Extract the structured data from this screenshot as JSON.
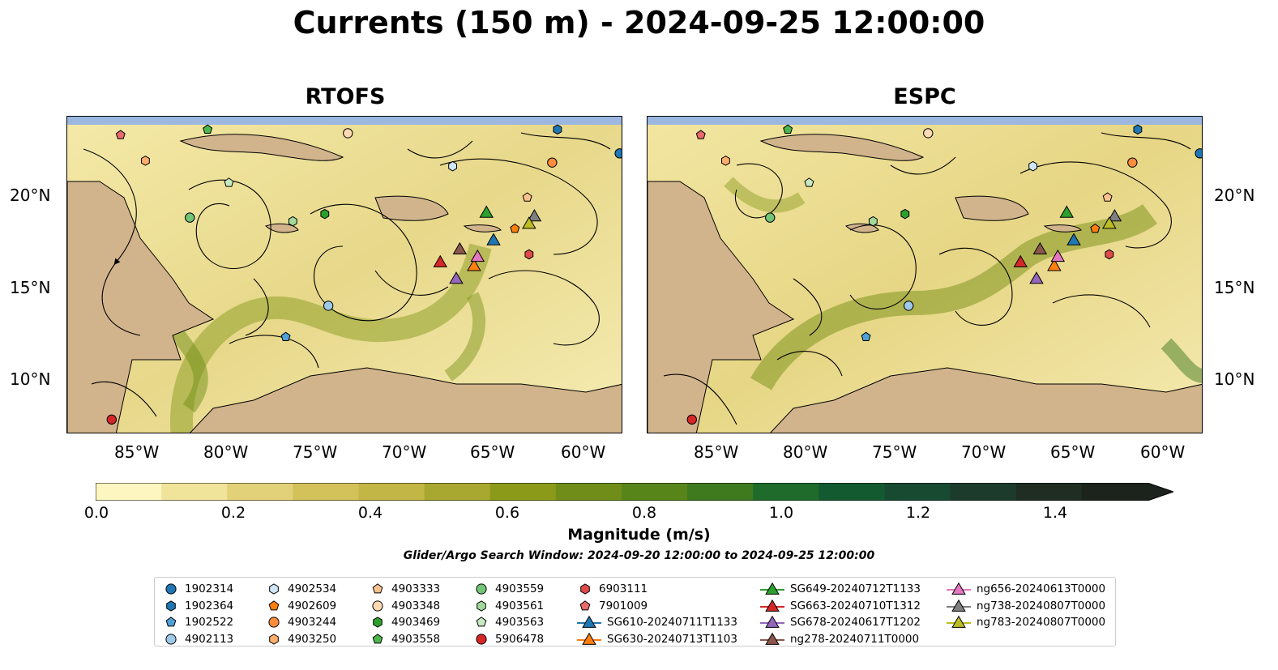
{
  "title": "Currents (150 m) - 2024-09-25 12:00:00",
  "panels": [
    {
      "title": "RTOFS"
    },
    {
      "title": "ESPC"
    }
  ],
  "lat_ticks": [
    "20°N",
    "15°N",
    "10°N"
  ],
  "lon_ticks": [
    "85°W",
    "80°W",
    "75°W",
    "70°W",
    "65°W",
    "60°W"
  ],
  "colorbar": {
    "label": "Magnitude (m/s)",
    "ticks": [
      "0.0",
      "0.2",
      "0.4",
      "0.6",
      "0.8",
      "1.0",
      "1.2",
      "1.4"
    ],
    "colors": [
      "#fdf6c0",
      "#f0e39a",
      "#e2d178",
      "#d3c15a",
      "#c2b646",
      "#a8a730",
      "#8c9a1a",
      "#6f8d18",
      "#578519",
      "#3f7a1f",
      "#1f6b2c",
      "#135a31",
      "#174a31",
      "#1c3b2c",
      "#1f2d23",
      "#1b231c"
    ]
  },
  "search_window": "Glider/Argo Search Window: 2024-09-20 12:00:00 to 2024-09-25 12:00:00",
  "map_colors": {
    "land": "#d2b48c",
    "water": "#9cb8e0",
    "current_low": "#fdf6c0"
  },
  "legend": [
    {
      "label": "1902314",
      "marker": "circle",
      "color": "#1f77b4"
    },
    {
      "label": "1902364",
      "marker": "hexagon",
      "color": "#1f77b4"
    },
    {
      "label": "1902522",
      "marker": "pentagon",
      "color": "#4ea0d7"
    },
    {
      "label": "4902113",
      "marker": "circle",
      "color": "#9ecae9"
    },
    {
      "label": "4902534",
      "marker": "hexagon",
      "color": "#cfe6f8"
    },
    {
      "label": "4902609",
      "marker": "pentagon",
      "color": "#ff7f0e"
    },
    {
      "label": "4903244",
      "marker": "circle",
      "color": "#fd8d3c"
    },
    {
      "label": "4903250",
      "marker": "hexagon",
      "color": "#fdae6b"
    },
    {
      "label": "4903333",
      "marker": "pentagon",
      "color": "#fdc38f"
    },
    {
      "label": "4903348",
      "marker": "circle",
      "color": "#fdd9b4"
    },
    {
      "label": "4903469",
      "marker": "hexagon",
      "color": "#2ca02c"
    },
    {
      "label": "4903558",
      "marker": "pentagon",
      "color": "#4cb84c"
    },
    {
      "label": "4903559",
      "marker": "circle",
      "color": "#74c476"
    },
    {
      "label": "4903561",
      "marker": "hexagon",
      "color": "#a1d99b"
    },
    {
      "label": "4903563",
      "marker": "pentagon",
      "color": "#c7e9c0"
    },
    {
      "label": "5906478",
      "marker": "circle",
      "color": "#d62728"
    },
    {
      "label": "6903111",
      "marker": "hexagon",
      "color": "#e04a4a"
    },
    {
      "label": "7901009",
      "marker": "pentagon",
      "color": "#e86b6b"
    },
    {
      "label": "SG610-20240711T1133",
      "marker": "triangle",
      "color": "#1f77b4"
    },
    {
      "label": "SG630-20240713T1103",
      "marker": "triangle",
      "color": "#ff7f0e"
    },
    {
      "label": "SG649-20240712T1133",
      "marker": "triangle",
      "color": "#2ca02c"
    },
    {
      "label": "SG663-20240710T1312",
      "marker": "triangle",
      "color": "#d62728"
    },
    {
      "label": "SG678-20240617T1202",
      "marker": "triangle",
      "color": "#9467bd"
    },
    {
      "label": "ng278-20240711T0000",
      "marker": "triangle",
      "color": "#8c564b"
    },
    {
      "label": "ng656-20240613T0000",
      "marker": "triangle",
      "color": "#e377c2"
    },
    {
      "label": "ng738-20240807T0000",
      "marker": "triangle",
      "color": "#7f7f7f"
    },
    {
      "label": "ng783-20240807T0000",
      "marker": "triangle",
      "color": "#bcbd22"
    }
  ],
  "map_points": {
    "rtofs": [
      {
        "id": "1902314",
        "lon": -58.4,
        "lat": 22.3
      },
      {
        "id": "1902364",
        "lon": -61.9,
        "lat": 23.6
      },
      {
        "id": "1902522",
        "lon": -77.2,
        "lat": 12.3
      },
      {
        "id": "4902113",
        "lon": -74.8,
        "lat": 14.0
      },
      {
        "id": "4902534",
        "lon": -67.8,
        "lat": 21.6
      },
      {
        "id": "4902609",
        "lon": -64.3,
        "lat": 18.2
      },
      {
        "id": "4903244",
        "lon": -62.2,
        "lat": 21.8
      },
      {
        "id": "4903250",
        "lon": -85.1,
        "lat": 21.9
      },
      {
        "id": "4903333",
        "lon": -63.6,
        "lat": 19.9
      },
      {
        "id": "4903348",
        "lon": -73.7,
        "lat": 23.4
      },
      {
        "id": "4903469",
        "lon": -75.0,
        "lat": 19.0
      },
      {
        "id": "4903558",
        "lon": -81.6,
        "lat": 23.6
      },
      {
        "id": "4903559",
        "lon": -82.6,
        "lat": 18.8
      },
      {
        "id": "4903561",
        "lon": -76.8,
        "lat": 18.6
      },
      {
        "id": "4903563",
        "lon": -80.4,
        "lat": 20.7
      },
      {
        "id": "5906478",
        "lon": -87.0,
        "lat": 7.8
      },
      {
        "id": "6903111",
        "lon": -63.5,
        "lat": 16.8
      },
      {
        "id": "7901009",
        "lon": -86.5,
        "lat": 23.3
      },
      {
        "id": "SG610-20240711T1133",
        "lon": -65.5,
        "lat": 17.6
      },
      {
        "id": "SG630-20240713T1103",
        "lon": -66.6,
        "lat": 16.2
      },
      {
        "id": "SG649-20240712T1133",
        "lon": -65.9,
        "lat": 19.1
      },
      {
        "id": "SG663-20240710T1312",
        "lon": -68.5,
        "lat": 16.4
      },
      {
        "id": "SG678-20240617T1202",
        "lon": -67.6,
        "lat": 15.5
      },
      {
        "id": "ng278-20240711T0000",
        "lon": -67.4,
        "lat": 17.1
      },
      {
        "id": "ng656-20240613T0000",
        "lon": -66.4,
        "lat": 16.7
      },
      {
        "id": "ng738-20240807T0000",
        "lon": -63.2,
        "lat": 18.9
      },
      {
        "id": "ng783-20240807T0000",
        "lon": -63.5,
        "lat": 18.5
      }
    ]
  }
}
